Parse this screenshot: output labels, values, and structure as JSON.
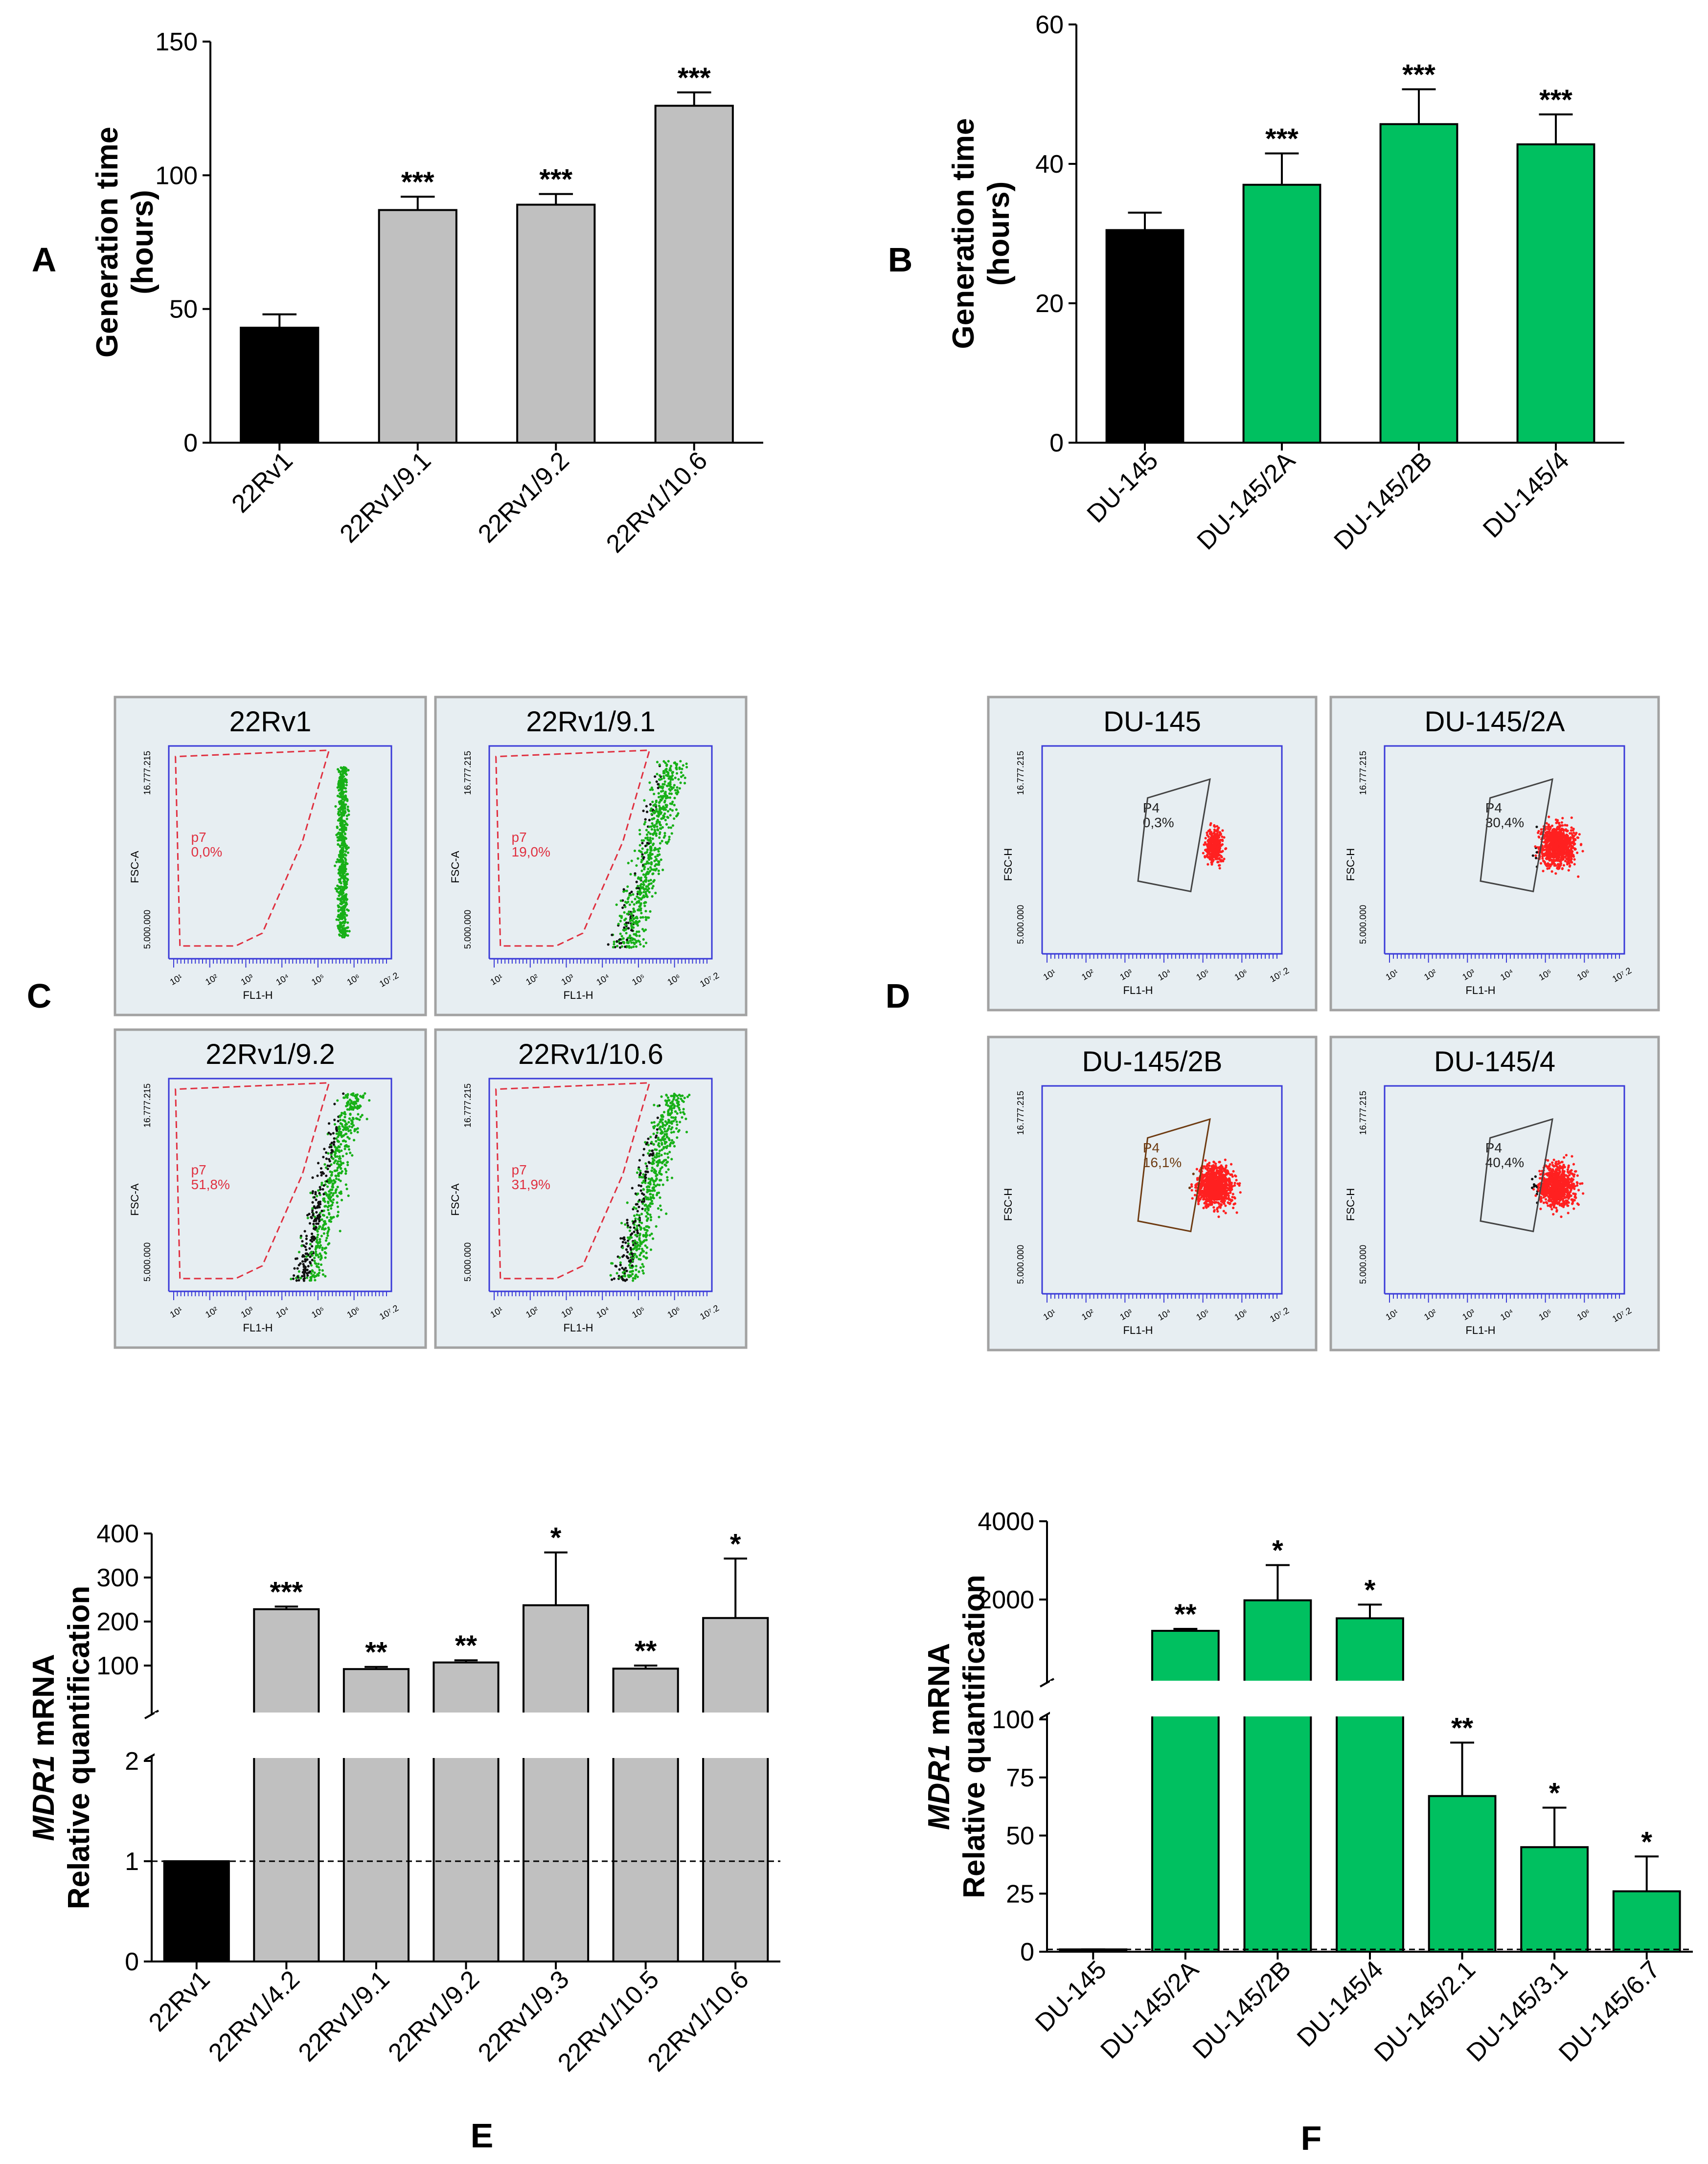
{
  "colors": {
    "black": "#000000",
    "gray": "#c0c0c0",
    "green": "#00c060",
    "red": "#ff2020",
    "facs_green": "#18b018",
    "gate_red": "#e03040",
    "gate_brown": "#6e3b12"
  },
  "chart_data": [
    {
      "id": "A",
      "panel_label": "A",
      "type": "bar",
      "ylabel_line1": "Generation time",
      "ylabel_line2": "(hours)",
      "ylim": [
        0,
        150
      ],
      "yticks": [
        0,
        50,
        100,
        150
      ],
      "ytick_labels": [
        "0",
        "50",
        "100",
        "150"
      ],
      "categories": [
        "22Rv1",
        "22Rv1/9.1",
        "22Rv1/9.2",
        "22Rv1/10.6"
      ],
      "values": [
        43,
        87,
        89,
        126
      ],
      "errors": [
        5,
        5,
        4,
        5
      ],
      "significance": [
        "",
        "***",
        "***",
        "***"
      ],
      "bar_colors": [
        "#000000",
        "#c0c0c0",
        "#c0c0c0",
        "#c0c0c0"
      ]
    },
    {
      "id": "B",
      "panel_label": "B",
      "type": "bar",
      "ylabel_line1": "Generation time",
      "ylabel_line2": "(hours)",
      "ylim": [
        0,
        60
      ],
      "yticks": [
        0,
        20,
        40,
        60
      ],
      "ytick_labels": [
        "0",
        "20",
        "40",
        "60"
      ],
      "categories": [
        "DU-145",
        "DU-145/2A",
        "DU-145/2B",
        "DU-145/4"
      ],
      "values": [
        30.5,
        37,
        45.7,
        42.8
      ],
      "errors": [
        2.5,
        4.5,
        5,
        4.3
      ],
      "significance": [
        "",
        "***",
        "***",
        "***"
      ],
      "bar_colors": [
        "#000000",
        "#00c060",
        "#00c060",
        "#00c060"
      ]
    },
    {
      "id": "E",
      "panel_label": "E",
      "type": "bar",
      "ylabel_italic": "MDR1",
      "ylabel_rest": " mRNA",
      "ylabel_line2": "Relative quantification",
      "broken_axis": true,
      "lower_ylim": [
        0,
        2
      ],
      "lower_yticks": [
        0,
        1,
        2
      ],
      "lower_ytick_labels": [
        "0",
        "1",
        "2"
      ],
      "upper_ylim": [
        0,
        400
      ],
      "upper_yticks": [
        100,
        200,
        300,
        400
      ],
      "upper_ytick_labels": [
        "100",
        "200",
        "300",
        "400"
      ],
      "reference_line": 1,
      "categories": [
        "22Rv1",
        "22Rv1/4.2",
        "22Rv1/9.1",
        "22Rv1/9.2",
        "22Rv1/9.3",
        "22Rv1/10.5",
        "22Rv1/10.6"
      ],
      "values": [
        1,
        228,
        92,
        107,
        237,
        93,
        208
      ],
      "errors": [
        0,
        6,
        5,
        5,
        120,
        7,
        135
      ],
      "significance": [
        "",
        "***",
        "**",
        "**",
        "*",
        "**",
        "*"
      ],
      "bar_colors": [
        "#000000",
        "#c0c0c0",
        "#c0c0c0",
        "#c0c0c0",
        "#c0c0c0",
        "#c0c0c0",
        "#c0c0c0"
      ],
      "xlabel_panel": "E"
    },
    {
      "id": "F",
      "panel_label": "F",
      "type": "bar",
      "ylabel_italic": "MDR1",
      "ylabel_rest": " mRNA",
      "ylabel_line2": "Relative quantification",
      "broken_axis": true,
      "lower_ylim": [
        0,
        100
      ],
      "lower_yticks": [
        0,
        25,
        50,
        75,
        100
      ],
      "lower_ytick_labels": [
        "0",
        "25",
        "50",
        "75",
        "100"
      ],
      "upper_ylim": [
        0,
        4000
      ],
      "upper_yticks": [
        2000,
        4000
      ],
      "upper_ytick_labels": [
        "2000",
        "4000"
      ],
      "reference_line": 1,
      "categories": [
        "DU-145",
        "DU-145/2A",
        "DU-145/2B",
        "DU-145/4",
        "DU-145/2.1",
        "DU-145/3.1",
        "DU-145/6.7"
      ],
      "values": [
        1,
        1200,
        1980,
        1520,
        67,
        45,
        26
      ],
      "errors": [
        0,
        50,
        900,
        350,
        23,
        17,
        15
      ],
      "significance": [
        "",
        "**",
        "*",
        "*",
        "**",
        "*",
        "*"
      ],
      "bar_colors": [
        "#000000",
        "#00c060",
        "#00c060",
        "#00c060",
        "#00c060",
        "#00c060",
        "#00c060"
      ],
      "xlabel_panel": "F"
    }
  ],
  "facs": {
    "C": {
      "panel_label": "C",
      "plots": [
        {
          "title": "22Rv1",
          "gate_name": "p7",
          "gate_pct": "0,0%",
          "yaxis": "FSC-A"
        },
        {
          "title": "22Rv1/9.1",
          "gate_name": "p7",
          "gate_pct": "19,0%",
          "yaxis": "FSC-A"
        },
        {
          "title": "22Rv1/9.2",
          "gate_name": "p7",
          "gate_pct": "51,8%",
          "yaxis": "FSC-A"
        },
        {
          "title": "22Rv1/10.6",
          "gate_name": "p7",
          "gate_pct": "31,9%",
          "yaxis": "FSC-A"
        }
      ]
    },
    "D": {
      "panel_label": "D",
      "plots": [
        {
          "title": "DU-145",
          "gate_name": "P4",
          "gate_pct": "0,3%",
          "yaxis": "FSC-H"
        },
        {
          "title": "DU-145/2A",
          "gate_name": "P4",
          "gate_pct": "30,4%",
          "yaxis": "FSC-H"
        },
        {
          "title": "DU-145/2B",
          "gate_name": "P4",
          "gate_pct": "16,1%",
          "yaxis": "FSC-H"
        },
        {
          "title": "DU-145/4",
          "gate_name": "P4",
          "gate_pct": "40,4%",
          "yaxis": "FSC-H"
        }
      ]
    },
    "xaxis": "FL1-H",
    "ytick_top": "16.777.215",
    "ytick_mid": "5.000.000",
    "xticks": [
      "10¹",
      "10²",
      "10³",
      "10⁴",
      "10⁵",
      "10⁶",
      "10⁷.2"
    ]
  }
}
